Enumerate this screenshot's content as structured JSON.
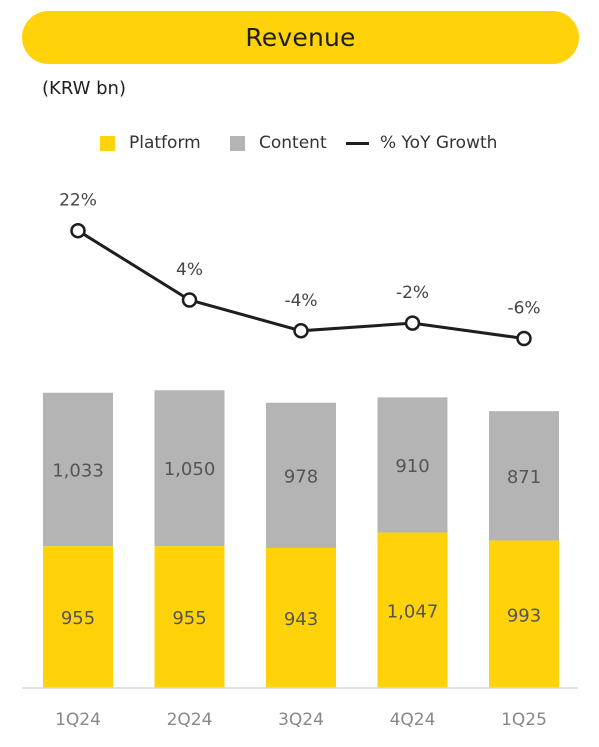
{
  "header": {
    "title": "Revenue"
  },
  "unit_label": "(KRW bn)",
  "legend": {
    "platform": "Platform",
    "content": "Content",
    "growth": "% YoY Growth"
  },
  "colors": {
    "platform": "#FFD20A",
    "content": "#B4B4B4",
    "growth_line": "#1e1e1e",
    "title_pill": "#FFD20A"
  },
  "chart_data": {
    "type": "bar",
    "stacked": true,
    "categories": [
      "1Q24",
      "2Q24",
      "3Q24",
      "4Q24",
      "1Q25"
    ],
    "series": [
      {
        "name": "Platform",
        "values": [
          955,
          955,
          943,
          1047,
          993
        ]
      },
      {
        "name": "Content",
        "values": [
          1033,
          1050,
          978,
          910,
          871
        ]
      }
    ],
    "line_series": {
      "name": "% YoY Growth",
      "values": [
        22,
        4,
        -4,
        -2,
        -6
      ],
      "labels": [
        "22%",
        "4%",
        "-4%",
        "-2%",
        "-6%"
      ]
    },
    "data_labels": {
      "platform": [
        "955",
        "955",
        "943",
        "1,047",
        "993"
      ],
      "content": [
        "1,033",
        "1,050",
        "978",
        "910",
        "871"
      ]
    },
    "legend_position": "top",
    "grid": false
  }
}
